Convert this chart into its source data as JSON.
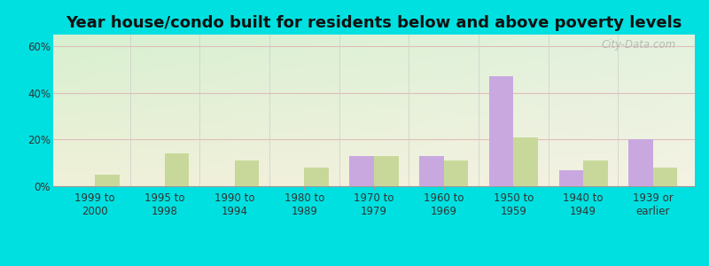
{
  "title": "Year house/condo built for residents below and above poverty levels",
  "categories": [
    "1999 to\n2000",
    "1995 to\n1998",
    "1990 to\n1994",
    "1980 to\n1989",
    "1970 to\n1979",
    "1960 to\n1969",
    "1950 to\n1959",
    "1940 to\n1949",
    "1939 or\nearlier"
  ],
  "below_poverty": [
    0,
    0,
    0,
    0,
    13,
    13,
    47,
    7,
    20
  ],
  "above_poverty": [
    5,
    14,
    11,
    8,
    13,
    11,
    21,
    11,
    8
  ],
  "below_color": "#c9a8e0",
  "above_color": "#c8d89a",
  "ylim": [
    0,
    65
  ],
  "yticks": [
    0,
    20,
    40,
    60
  ],
  "ytick_labels": [
    "0%",
    "20%",
    "40%",
    "60%"
  ],
  "title_fontsize": 13,
  "tick_fontsize": 8.5,
  "background_outer": "#00e0e0",
  "bar_width": 0.35,
  "gridline_color": "#e0b8b8",
  "gridline_alpha": 0.9
}
